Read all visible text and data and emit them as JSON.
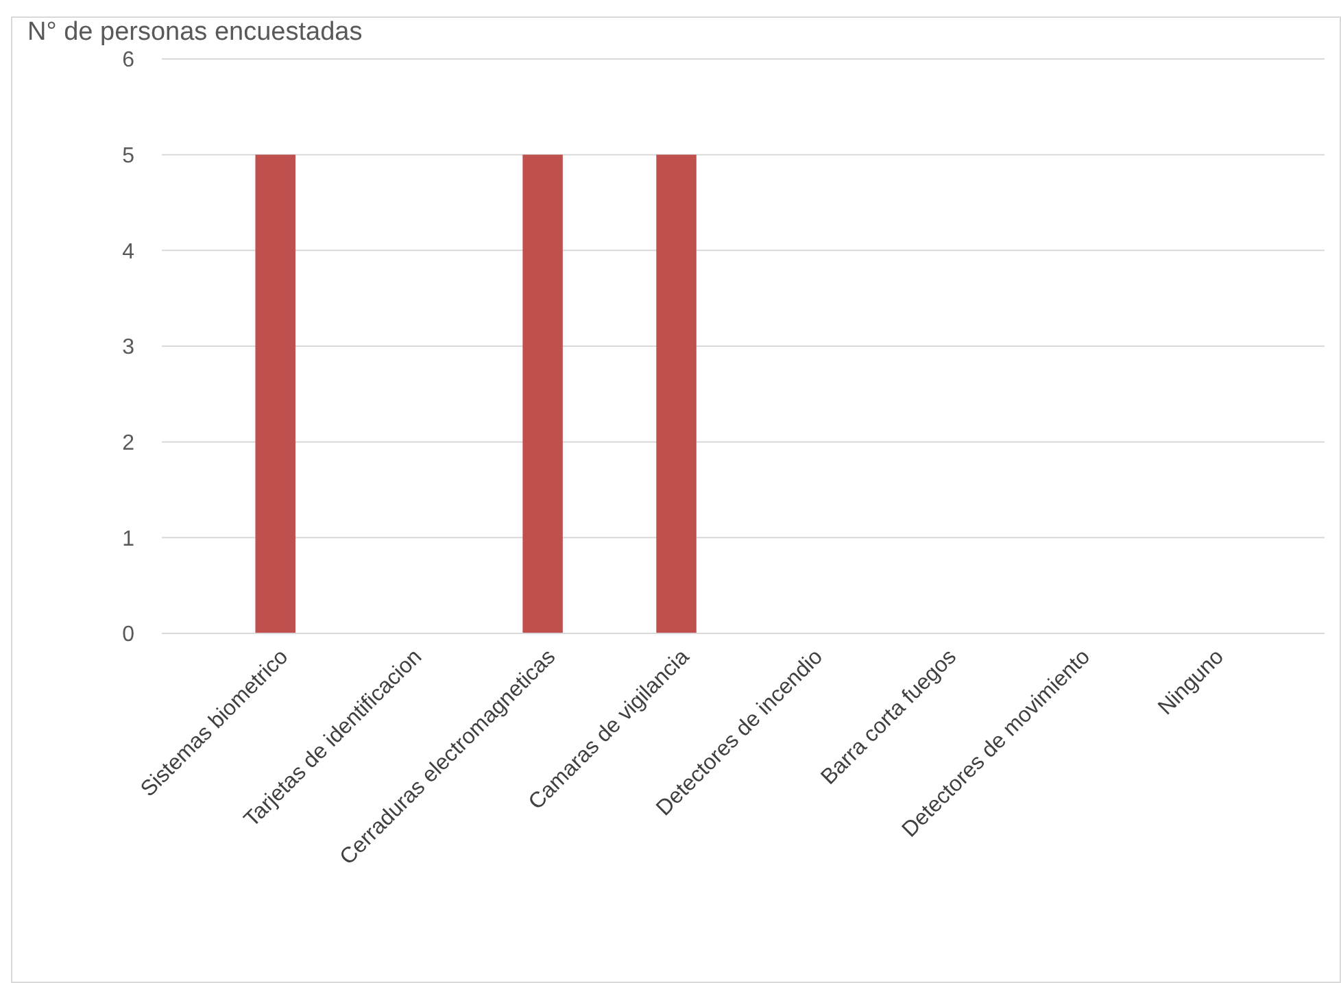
{
  "chart_data": {
    "type": "bar",
    "ylabel": "N° de personas encuestadas",
    "categories": [
      "Sistemas biometrico",
      "Tarjetas de identificacion",
      "Cerraduras electromagneticas",
      "Camaras de vigilancia",
      "Detectores de incendio",
      "Barra corta fuegos",
      "Detectores de movimiento",
      "Ninguno"
    ],
    "values": [
      5,
      0,
      5,
      5,
      0,
      0,
      0,
      0
    ],
    "color": "#c0504d",
    "ylim": [
      0,
      6
    ],
    "yticks": [
      0,
      1,
      2,
      3,
      4,
      5,
      6
    ],
    "grid": "y"
  }
}
